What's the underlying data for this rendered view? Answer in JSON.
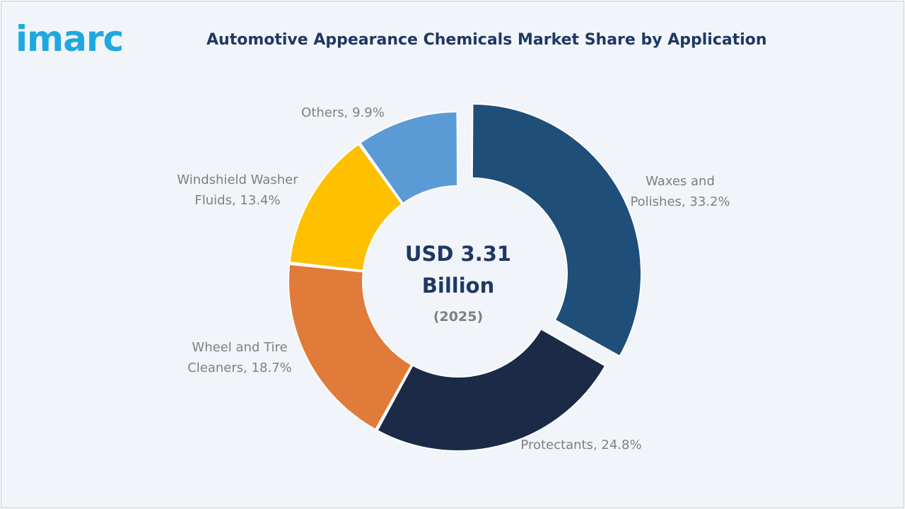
{
  "brand": {
    "logo_text": "imarc",
    "logo_color": "#1fa8e0"
  },
  "chart_data": {
    "type": "pie",
    "title": "Automotive Appearance Chemicals Market Share by Application",
    "unit": "%",
    "center_label": {
      "line1": "USD 3.31",
      "line2": "Billion",
      "line3": "(2025)"
    },
    "slices": [
      {
        "label_line1": "Waxes and",
        "label_line2": "Polishes, 33.2%",
        "value": 33.2,
        "color": "#1f4e79",
        "exploded": true
      },
      {
        "label_line1": "Protectants, 24.8%",
        "label_line2": "",
        "value": 24.8,
        "color": "#1b2a47",
        "exploded": false
      },
      {
        "label_line1": "Wheel and Tire",
        "label_line2": "Cleaners, 18.7%",
        "value": 18.7,
        "color": "#e07b39",
        "exploded": false
      },
      {
        "label_line1": "Windshield Washer",
        "label_line2": "Fluids, 13.4%",
        "value": 13.4,
        "color": "#ffc000",
        "exploded": false
      },
      {
        "label_line1": "Others, 9.9%",
        "label_line2": "",
        "value": 9.9,
        "color": "#5b9bd5",
        "exploded": false
      }
    ],
    "legend": "none",
    "grid": false
  }
}
